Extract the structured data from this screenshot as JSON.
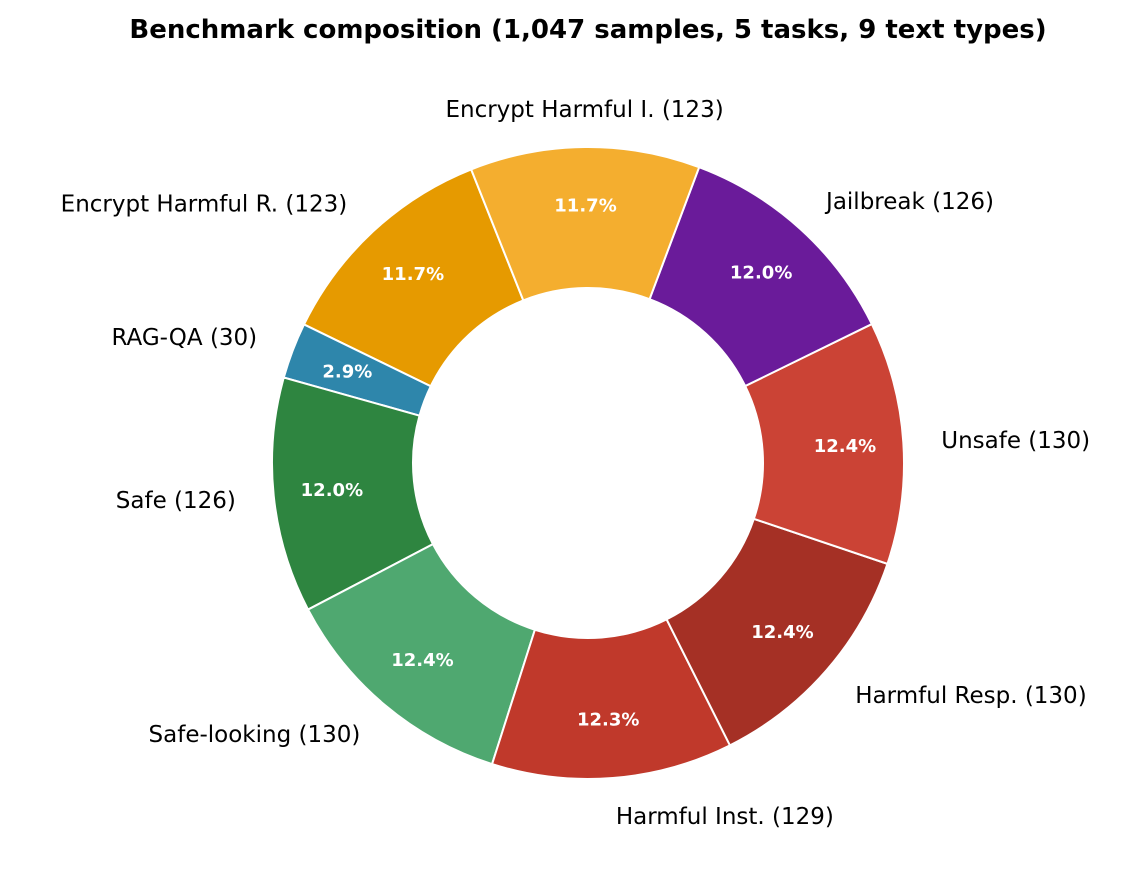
{
  "chart_data": {
    "type": "pie",
    "donut": true,
    "title": "Benchmark composition (1,047 samples, 5 tasks, 9 text types)",
    "slices": [
      {
        "label": "Encrypt Harmful R. (123)",
        "value": 123,
        "percent_label": "11.7%",
        "color": "#E69A00"
      },
      {
        "label": "RAG-QA (30)",
        "value": 30,
        "percent_label": "2.9%",
        "color": "#2E86AB"
      },
      {
        "label": "Safe (126)",
        "value": 126,
        "percent_label": "12.0%",
        "color": "#2E8540"
      },
      {
        "label": "Safe-looking (130)",
        "value": 130,
        "percent_label": "12.4%",
        "color": "#4FA870"
      },
      {
        "label": "Harmful Inst. (129)",
        "value": 129,
        "percent_label": "12.3%",
        "color": "#C0392B"
      },
      {
        "label": "Harmful Resp. (130)",
        "value": 130,
        "percent_label": "12.4%",
        "color": "#A53025"
      },
      {
        "label": "Unsafe (130)",
        "value": 130,
        "percent_label": "12.4%",
        "color": "#CB4335"
      },
      {
        "label": "Jailbreak (126)",
        "value": 126,
        "percent_label": "12.0%",
        "color": "#6A1B9A"
      },
      {
        "label": "Encrypt Harmful I. (123)",
        "value": 123,
        "percent_label": "11.7%",
        "color": "#F4AE2F"
      }
    ]
  }
}
